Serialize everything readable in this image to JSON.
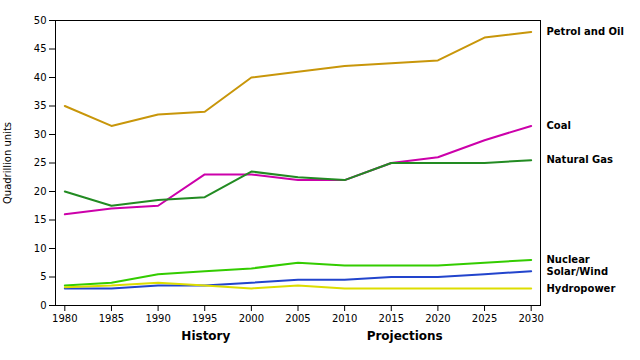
{
  "chart_data": {
    "type": "line",
    "x": [
      1980,
      1985,
      1990,
      1995,
      2000,
      2005,
      2010,
      2015,
      2020,
      2025,
      2030
    ],
    "xlim": [
      1979,
      2031
    ],
    "xticks": [
      1980,
      1985,
      1990,
      1995,
      2000,
      2005,
      2010,
      2015,
      2020,
      2025,
      2030
    ],
    "ylabel": "Quadrillion units",
    "ylim": [
      0,
      50
    ],
    "yticks": [
      0,
      5,
      10,
      15,
      20,
      25,
      30,
      35,
      40,
      45,
      50
    ],
    "grid": false,
    "series": [
      {
        "name": "Petrol and Oil",
        "color": "#C8960A",
        "values": [
          35,
          31.5,
          33.5,
          34,
          40,
          41,
          42,
          42.5,
          43,
          47,
          48
        ]
      },
      {
        "name": "Coal",
        "color": "#CC00AA",
        "values": [
          16,
          17,
          17.5,
          23,
          23,
          22,
          22,
          25,
          26,
          29,
          31.5
        ]
      },
      {
        "name": "Natural Gas",
        "color": "#228B22",
        "values": [
          20,
          17.5,
          18.5,
          19,
          23.5,
          22.5,
          22,
          25,
          25,
          25,
          25.5
        ]
      },
      {
        "name": "Nuclear",
        "color": "#33CC00",
        "values": [
          3.5,
          4,
          5.5,
          6,
          6.5,
          7.5,
          7,
          7,
          7,
          7.5,
          8
        ]
      },
      {
        "name": "Solar/Wind",
        "color": "#2244CC",
        "values": [
          3,
          3,
          3.5,
          3.5,
          4,
          4.5,
          4.5,
          5,
          5,
          5.5,
          6
        ]
      },
      {
        "name": "Hydropower",
        "color": "#DDDD00",
        "values": [
          3.2,
          3.5,
          4,
          3.5,
          3,
          3.5,
          3,
          3,
          3,
          3,
          3
        ]
      }
    ],
    "annotations": [
      {
        "text": "History"
      },
      {
        "text": "Projections"
      }
    ]
  }
}
